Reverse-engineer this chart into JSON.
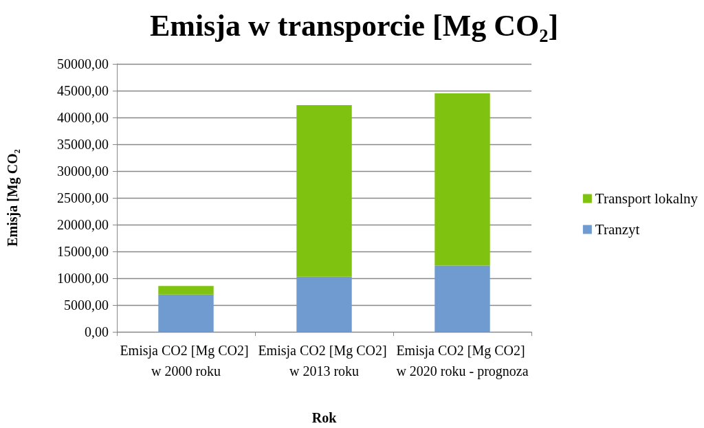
{
  "chart_data": {
    "type": "bar",
    "title": "Emisja w transporcie [Mg CO₂]",
    "xlabel": "Rok",
    "ylabel": "Emisja [Mg CO₂",
    "categories": [
      "Emisja CO2 [Mg CO2] w 2000 roku",
      "Emisja CO2 [Mg CO2] w 2013 roku",
      "Emisja CO2 [Mg CO2] w 2020 roku - prognoza"
    ],
    "series": [
      {
        "name": "Tranzyt",
        "color": "#6f9bd1",
        "values": [
          6940,
          10280,
          12360
        ]
      },
      {
        "name": "Transport lokalny",
        "color": "#80c210",
        "values": [
          1620,
          32020,
          32170
        ]
      }
    ],
    "stacked": true,
    "ylim": [
      0,
      50000
    ],
    "yticks": [
      {
        "value": 0,
        "label": "0,00"
      },
      {
        "value": 5000,
        "label": "5000,00"
      },
      {
        "value": 10000,
        "label": "10000,00"
      },
      {
        "value": 15000,
        "label": "15000,00"
      },
      {
        "value": 20000,
        "label": "20000,00"
      },
      {
        "value": 25000,
        "label": "25000,00"
      },
      {
        "value": 30000,
        "label": "30000,00"
      },
      {
        "value": 35000,
        "label": "35000,00"
      },
      {
        "value": 40000,
        "label": "40000,00"
      },
      {
        "value": 45000,
        "label": "45000,00"
      },
      {
        "value": 50000,
        "label": "50000,00"
      }
    ],
    "grid": "y",
    "legend": "right"
  }
}
